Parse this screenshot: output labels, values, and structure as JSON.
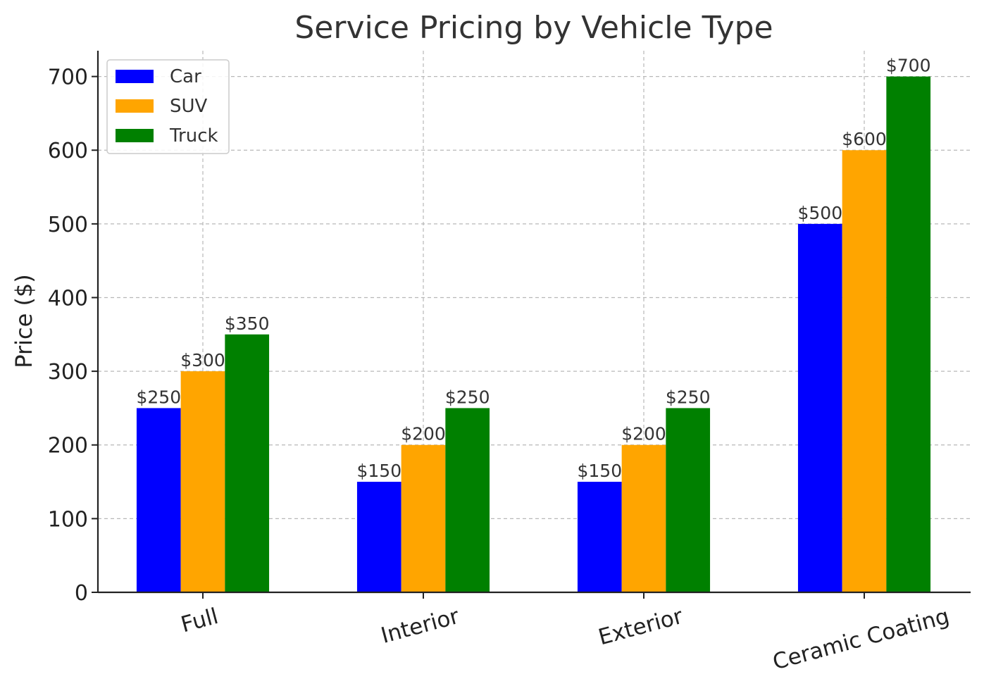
{
  "chart_data": {
    "type": "bar",
    "title": "Service Pricing by Vehicle Type",
    "xlabel": "",
    "ylabel": "Price ($)",
    "categories": [
      "Full",
      "Interior",
      "Exterior",
      "Ceramic Coating"
    ],
    "series": [
      {
        "name": "Car",
        "color": "#0000ff",
        "values": [
          250,
          150,
          150,
          500
        ]
      },
      {
        "name": "SUV",
        "color": "#ffa500",
        "values": [
          300,
          200,
          200,
          600
        ]
      },
      {
        "name": "Truck",
        "color": "#008000",
        "values": [
          350,
          250,
          250,
          700
        ]
      }
    ],
    "data_labels": [
      [
        "$250",
        "$150",
        "$150",
        "$500"
      ],
      [
        "$300",
        "$200",
        "$200",
        "$600"
      ],
      [
        "$350",
        "$250",
        "$250",
        "$700"
      ]
    ],
    "yticks": [
      0,
      100,
      200,
      300,
      400,
      500,
      600,
      700
    ],
    "ylim": [
      0,
      735
    ],
    "grid": true,
    "legend_position": "top-left",
    "xtick_rotation_deg": 15
  }
}
